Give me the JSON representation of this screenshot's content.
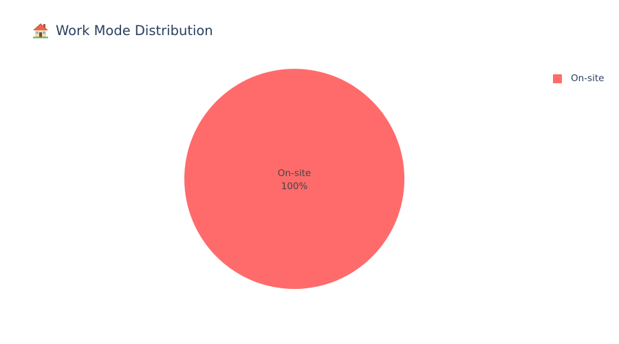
{
  "chart_data": {
    "type": "pie",
    "title": "Work Mode Distribution",
    "title_icon": "house-icon",
    "slices": [
      {
        "label": "On-site",
        "value": 100,
        "percent_label": "100%",
        "color": "#ff6b6b"
      }
    ],
    "legend": {
      "placement": "top-right",
      "entries": [
        "On-site"
      ]
    }
  },
  "colors": {
    "title_text": "#2a3f5f",
    "slice_label_text": "#444444"
  }
}
